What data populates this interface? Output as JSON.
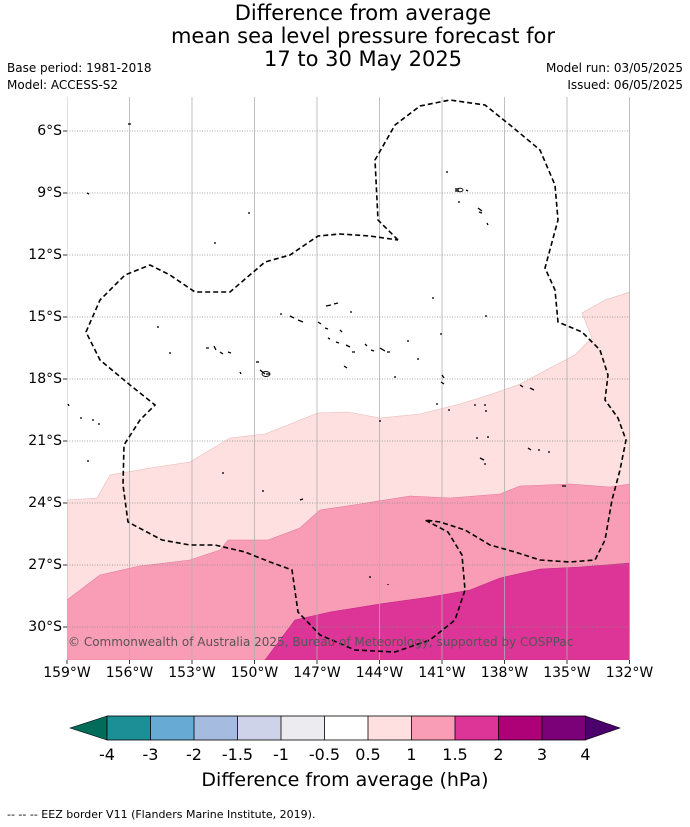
{
  "title": {
    "line1": "Difference from average",
    "line2": "mean sea level pressure forecast for",
    "line3": "17 to 30 May 2025"
  },
  "meta": {
    "base_period": "Base period: 1981-2018",
    "model": "Model: ACCESS-S2",
    "model_run": "Model run: 03/05/2025",
    "issued": "Issued: 06/05/2025"
  },
  "map": {
    "longitude_labels": [
      "159°W",
      "156°W",
      "153°W",
      "150°W",
      "147°W",
      "144°W",
      "141°W",
      "138°W",
      "135°W",
      "132°W"
    ],
    "latitude_labels": [
      "6°S",
      "9°S",
      "12°S",
      "15°S",
      "18°S",
      "21°S",
      "24°S",
      "27°S",
      "30°S"
    ],
    "copyright": "© Commonwealth of Australia 2025, Bureau of Meteorology, supported by COSPPac",
    "colors": {
      "band_0_5_to_1": "#fde0df",
      "band_1_to_1_5": "#f99db6",
      "band_1_5_to_2": "#dd3497",
      "eez_border": "#000000",
      "grid": "#8a8a8a"
    }
  },
  "colorbar": {
    "ticks": [
      "-4",
      "-3",
      "-2",
      "-1.5",
      "-1",
      "-0.5",
      "0.5",
      "1",
      "1.5",
      "2",
      "3",
      "4"
    ],
    "colors": [
      "#1c8f96",
      "#67aad3",
      "#a5bbdf",
      "#cfd3e9",
      "#ececf0",
      "#ffffff",
      "#fde0df",
      "#f99db6",
      "#dd3497",
      "#ae0077",
      "#7a0177"
    ],
    "under_color": "#016c59",
    "over_color": "#49006a",
    "label": "Difference from average (hPa)"
  },
  "footer": "--  --  -- EEZ border V11 (Flanders Marine Institute, 2019)."
}
